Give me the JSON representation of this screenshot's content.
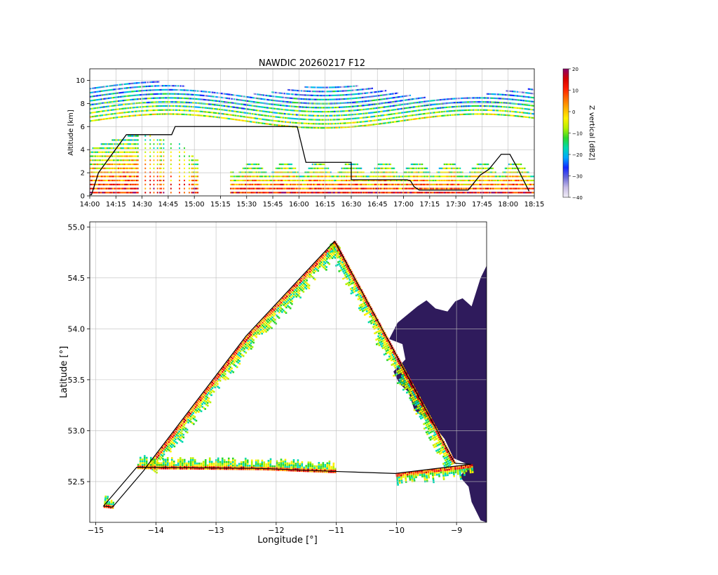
{
  "figure": {
    "title": "NAWDIC 20260217 F12"
  },
  "colors": {
    "background": "#ffffff",
    "flight_track": "#000000",
    "grid": "#bdbdbd",
    "land": "#2f1b5c",
    "colormap": [
      "#f2eef7",
      "#c8bde6",
      "#6a6ad8",
      "#1428ff",
      "#00a8ff",
      "#00d9b0",
      "#2cd82c",
      "#b7f000",
      "#fff000",
      "#ffb000",
      "#ff6a00",
      "#ff1e00",
      "#d40000",
      "#8a006a"
    ]
  },
  "chart_data": [
    {
      "type": "heatmap",
      "title": "NAWDIC 20260217 F12",
      "xlabel": "",
      "ylabel": "Altitude [km]",
      "xlim": [
        "14:00",
        "18:15"
      ],
      "ylim": [
        0,
        11
      ],
      "x_ticks": [
        "14:00",
        "14:15",
        "14:30",
        "14:45",
        "15:00",
        "15:15",
        "15:30",
        "15:45",
        "16:00",
        "16:15",
        "16:30",
        "16:45",
        "17:00",
        "17:15",
        "17:30",
        "17:45",
        "18:00",
        "18:15"
      ],
      "y_ticks": [
        0,
        2,
        4,
        6,
        8,
        10
      ],
      "grid": true,
      "colorbar": {
        "label": "Z vertical [dBZ]",
        "range": [
          -40,
          20
        ],
        "ticks": [
          20,
          10,
          0,
          -10,
          -20,
          -30,
          -40
        ]
      },
      "flight_altitude": {
        "times": [
          "14:00",
          "14:01",
          "14:05",
          "14:21",
          "14:47",
          "14:49",
          "15:59",
          "16:04",
          "16:21",
          "16:30",
          "16:30",
          "17:02",
          "17:04",
          "17:06",
          "17:09",
          "17:37",
          "17:44",
          "17:49",
          "17:56",
          "18:01",
          "18:05",
          "18:12"
        ],
        "altitudes_km": [
          0.1,
          0.1,
          2.0,
          5.3,
          5.3,
          6.0,
          6.0,
          2.9,
          2.9,
          2.9,
          1.4,
          1.4,
          1.3,
          0.8,
          0.5,
          0.5,
          1.8,
          2.3,
          3.6,
          3.6,
          2.5,
          0.4
        ]
      }
    },
    {
      "type": "heatmap",
      "title": "",
      "xlabel": "Longitude [°]",
      "ylabel": "Latitude [°]",
      "xlim": [
        -15.1,
        -8.5
      ],
      "ylim": [
        52.1,
        55.05
      ],
      "x_ticks": [
        -15,
        -14,
        -13,
        -12,
        -11,
        -10,
        -9
      ],
      "x_tick_labels": [
        "−15",
        "−14",
        "−13",
        "−12",
        "−11",
        "−10",
        "−9"
      ],
      "y_ticks": [
        52.5,
        53.0,
        53.5,
        54.0,
        54.5,
        55.0
      ],
      "y_tick_labels": [
        "52.5",
        "53.0",
        "53.5",
        "54.0",
        "54.5",
        "55.0"
      ],
      "grid": true,
      "flight_track": {
        "lon": [
          -9.03,
          -8.76,
          -10.02,
          -11.03,
          -12.28,
          -14.32,
          -14.87,
          -14.72,
          -14.2,
          -14.14,
          -12.5,
          -11.03
        ],
        "lat": [
          52.68,
          52.67,
          52.58,
          52.6,
          52.63,
          52.64,
          52.26,
          52.25,
          52.61,
          52.66,
          53.93,
          54.86
        ]
      },
      "land_outline": {
        "lon": [
          -8.5,
          -8.6,
          -8.75,
          -8.8,
          -8.95,
          -8.78,
          -9.05,
          -9.2,
          -9.45,
          -9.7,
          -9.8,
          -9.95,
          -10.05,
          -9.85,
          -9.9,
          -10.12,
          -9.98,
          -9.65,
          -9.5,
          -9.35,
          -9.15,
          -9.02,
          -8.9,
          -8.75,
          -8.6,
          -8.5
        ],
        "lat": [
          52.1,
          52.12,
          52.3,
          52.45,
          52.55,
          52.66,
          52.73,
          52.92,
          53.1,
          53.2,
          53.38,
          53.46,
          53.58,
          53.7,
          53.85,
          53.9,
          54.06,
          54.22,
          54.28,
          54.2,
          54.17,
          54.27,
          54.3,
          54.22,
          54.5,
          54.62
        ]
      }
    }
  ]
}
